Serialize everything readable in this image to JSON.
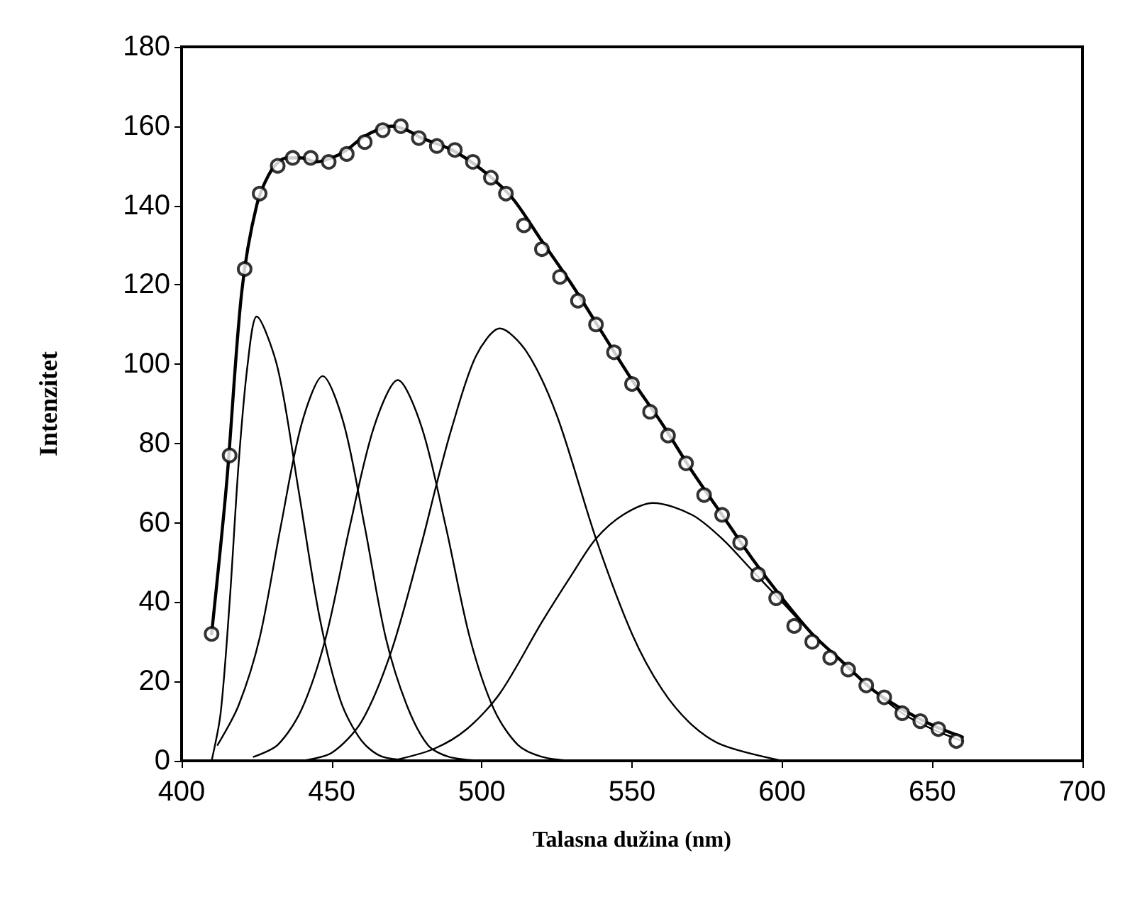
{
  "chart_data": {
    "type": "line",
    "xlabel": "Talasna dužina (nm)",
    "ylabel": "Intenzitet",
    "xlim": [
      400,
      700
    ],
    "xticks": [
      400,
      450,
      500,
      550,
      600,
      650,
      700
    ],
    "ylim": [
      0,
      180
    ],
    "yticks": [
      0,
      20,
      40,
      60,
      80,
      100,
      120,
      140,
      160,
      180
    ],
    "marker": "none",
    "line_style": "solid",
    "series": [
      {
        "type": "scatter",
        "marker": "circle",
        "color": "#000000",
        "x": [
          410,
          416,
          421,
          426,
          432,
          437,
          443,
          449,
          455,
          461,
          467,
          473,
          479,
          485,
          491,
          497,
          503,
          508,
          514,
          520,
          526,
          532,
          538,
          544,
          550,
          556,
          562,
          568,
          574,
          580,
          586,
          592,
          598,
          604,
          610,
          616,
          622,
          628,
          634,
          640,
          646,
          652,
          658
        ],
        "values": [
          32,
          77,
          124,
          143,
          150,
          152,
          152,
          151,
          153,
          156,
          159,
          160,
          157,
          155,
          154,
          151,
          147,
          143,
          135,
          129,
          122,
          116,
          110,
          103,
          95,
          88,
          82,
          75,
          67,
          62,
          55,
          47,
          41,
          34,
          30,
          26,
          23,
          19,
          16,
          12,
          10,
          8,
          5
        ]
      },
      {
        "color": "#000000",
        "x": [
          410,
          415,
          420,
          425,
          430,
          435,
          440,
          445,
          450,
          455,
          460,
          465,
          470,
          475,
          480,
          490,
          500,
          510,
          520,
          530,
          540,
          550,
          560,
          570,
          580,
          590,
          600,
          610,
          620,
          630,
          640,
          650,
          660
        ],
        "values": [
          32,
          70,
          118,
          140,
          149,
          152,
          152,
          151,
          152,
          154,
          157,
          159,
          160,
          159,
          157,
          154,
          149,
          142,
          131,
          120,
          108,
          96,
          85,
          73,
          62,
          51,
          41,
          32,
          25,
          18,
          13,
          9,
          6
        ]
      },
      {
        "color": "#000000",
        "x": [
          410,
          413,
          416,
          419,
          422,
          425,
          432,
          439,
          446,
          453,
          460,
          467,
          480
        ],
        "values": [
          0,
          12,
          40,
          75,
          100,
          112,
          99,
          68,
          36,
          15,
          5,
          1,
          0
        ]
      },
      {
        "color": "#000000",
        "x": [
          412,
          419,
          426,
          433,
          440,
          447,
          454,
          461,
          468,
          475,
          482,
          489,
          500
        ],
        "values": [
          4,
          14,
          31,
          59,
          85,
          97,
          85,
          59,
          31,
          14,
          4,
          1,
          0
        ]
      },
      {
        "color": "#000000",
        "x": [
          424,
          432,
          440,
          448,
          456,
          464,
          472,
          480,
          488,
          496,
          504,
          512,
          520,
          530
        ],
        "values": [
          1,
          4,
          13,
          31,
          59,
          84,
          96,
          84,
          59,
          31,
          13,
          4,
          1,
          0
        ]
      },
      {
        "color": "#000000",
        "x": [
          440,
          450,
          460,
          470,
          480,
          485,
          490,
          498,
          506,
          515,
          525,
          538,
          550,
          560,
          570,
          580,
          600
        ],
        "values": [
          0,
          2,
          10,
          28,
          55,
          70,
          84,
          102,
          109,
          103,
          87,
          56,
          32,
          18,
          9,
          4,
          0
        ]
      },
      {
        "color": "#000000",
        "x": [
          470,
          484,
          495,
          506,
          520,
          530,
          538,
          547,
          557,
          570,
          580,
          590,
          600,
          610,
          620,
          630,
          640,
          650,
          660
        ],
        "values": [
          0,
          3,
          8,
          17,
          35,
          47,
          56,
          62,
          65,
          62,
          56,
          48,
          40,
          32,
          25,
          18,
          12,
          8,
          5
        ]
      }
    ]
  }
}
